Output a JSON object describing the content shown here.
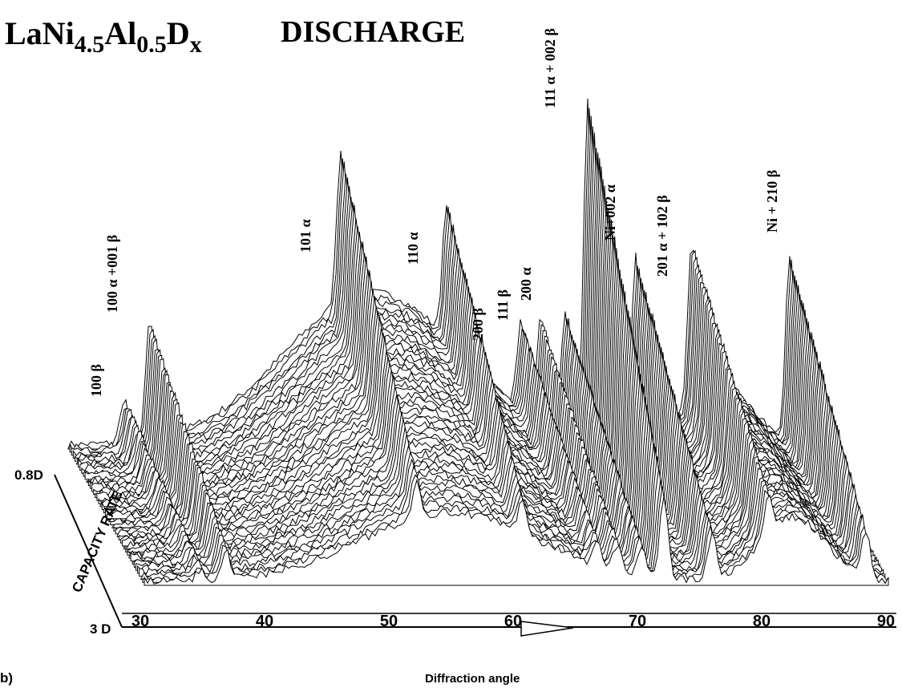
{
  "figure": {
    "formula": [
      "LaNi",
      "4.5",
      "Al",
      "0.5",
      "D",
      "x"
    ],
    "title": "DISCHARGE",
    "peak_labels": [
      "100 β",
      "100 α +001 β",
      "101 α",
      "110 α",
      "200 β",
      "111 β",
      "200 α",
      "111 α + 002 β",
      "Ni+002 α",
      "201 α + 102 β",
      "Ni + 210 β"
    ],
    "depth_axis": {
      "back": "0.8D",
      "label": "CAPACITY RATE",
      "front": "3 D"
    },
    "x_ticks": [
      "30",
      "40",
      "50",
      "60",
      "70",
      "80",
      "90"
    ],
    "x_label": "Diffraction angle",
    "panel": "b)"
  }
}
